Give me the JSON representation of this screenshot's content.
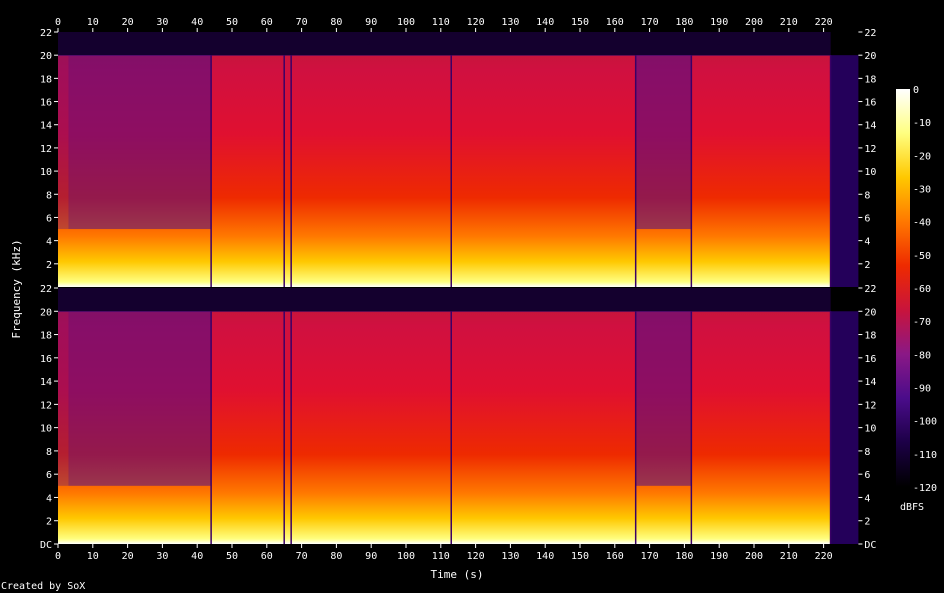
{
  "chart_data": {
    "type": "heatmap",
    "subtype": "spectrogram",
    "xlabel": "Time (s)",
    "ylabel": "Frequency (kHz)",
    "credit": "Created by SoX",
    "xlim": [
      0,
      230
    ],
    "xticks": [
      0,
      10,
      20,
      30,
      40,
      50,
      60,
      70,
      80,
      90,
      100,
      110,
      120,
      130,
      140,
      150,
      160,
      170,
      180,
      190,
      200,
      210,
      220
    ],
    "ylim_khz": [
      0,
      22
    ],
    "yticks": [
      {
        "value": 0,
        "label": "DC"
      },
      {
        "value": 2,
        "label": "2"
      },
      {
        "value": 4,
        "label": "4"
      },
      {
        "value": 6,
        "label": "6"
      },
      {
        "value": 8,
        "label": "8"
      },
      {
        "value": 10,
        "label": "10"
      },
      {
        "value": 12,
        "label": "12"
      },
      {
        "value": 14,
        "label": "14"
      },
      {
        "value": 16,
        "label": "16"
      },
      {
        "value": 18,
        "label": "18"
      },
      {
        "value": 20,
        "label": "20"
      },
      {
        "value": 22,
        "label": "22"
      }
    ],
    "channels": 2,
    "audio_end_s": 222,
    "lowpass_cutoff_khz": 20,
    "colorbar": {
      "unit": "dBFS",
      "range": [
        -120,
        0
      ],
      "ticks": [
        0,
        -10,
        -20,
        -30,
        -40,
        -50,
        -60,
        -70,
        -80,
        -90,
        -100,
        -110,
        -120
      ],
      "colors": [
        "#000000",
        "#1c0046",
        "#4a0c8a",
        "#8a1886",
        "#c8143c",
        "#ee2a00",
        "#ff7800",
        "#ffc800",
        "#ffff80",
        "#ffffff"
      ]
    },
    "segments": [
      {
        "start": 0,
        "end": 3,
        "level": "quiet"
      },
      {
        "start": 3,
        "end": 44,
        "level": "medium"
      },
      {
        "start": 44,
        "end": 67,
        "level": "loud"
      },
      {
        "start": 67,
        "end": 113,
        "level": "loud"
      },
      {
        "start": 113,
        "end": 166,
        "level": "loud"
      },
      {
        "start": 166,
        "end": 182,
        "level": "medium"
      },
      {
        "start": 182,
        "end": 222,
        "level": "loud"
      }
    ],
    "transients_s": [
      44,
      65,
      67,
      113,
      166,
      182,
      222
    ]
  }
}
